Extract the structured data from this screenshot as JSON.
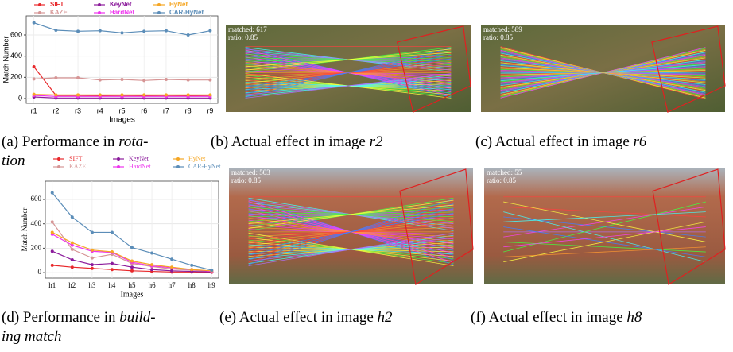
{
  "chart_data": [
    {
      "type": "line",
      "x_label": "Images",
      "y_label": "Match Number",
      "categories": [
        "r1",
        "r2",
        "r3",
        "r4",
        "r5",
        "r6",
        "r7",
        "r8",
        "r9"
      ],
      "ylim": [
        -45,
        780
      ],
      "yticks": [
        0,
        200,
        400,
        600
      ],
      "grid": true,
      "legend": "top",
      "series": [
        {
          "name": "SIFT",
          "color": "#e8282b",
          "values": [
            300,
            30,
            30,
            28,
            30,
            28,
            30,
            28,
            30
          ]
        },
        {
          "name": "KAZE",
          "color": "#d69595",
          "values": [
            185,
            195,
            195,
            175,
            180,
            170,
            180,
            175,
            175
          ]
        },
        {
          "name": "KeyNet",
          "color": "#8b1a9b",
          "values": [
            15,
            5,
            5,
            5,
            5,
            5,
            5,
            5,
            5
          ]
        },
        {
          "name": "HardNet",
          "color": "#ee33ee",
          "values": [
            30,
            20,
            20,
            20,
            20,
            20,
            20,
            20,
            20
          ]
        },
        {
          "name": "HyNet",
          "color": "#f5a623",
          "values": [
            40,
            35,
            35,
            35,
            35,
            35,
            35,
            35,
            35
          ]
        },
        {
          "name": "CAR-HyNet",
          "color": "#5b8db8",
          "values": [
            715,
            645,
            635,
            640,
            620,
            635,
            640,
            600,
            640
          ]
        }
      ]
    },
    {
      "type": "line",
      "x_label": "Images",
      "y_label": "Match Number",
      "categories": [
        "h1",
        "h2",
        "h3",
        "h4",
        "h5",
        "h6",
        "h7",
        "h8",
        "h9"
      ],
      "ylim": [
        -45,
        750
      ],
      "yticks": [
        0,
        200,
        400,
        600
      ],
      "grid": true,
      "legend": "top",
      "series": [
        {
          "name": "SIFT",
          "color": "#e8282b",
          "values": [
            60,
            45,
            35,
            25,
            15,
            10,
            5,
            5,
            3
          ]
        },
        {
          "name": "KAZE",
          "color": "#d69595",
          "values": [
            415,
            190,
            120,
            150,
            75,
            50,
            30,
            20,
            10
          ]
        },
        {
          "name": "KeyNet",
          "color": "#8b1a9b",
          "values": [
            175,
            105,
            65,
            75,
            45,
            25,
            15,
            10,
            5
          ]
        },
        {
          "name": "HardNet",
          "color": "#ee33ee",
          "values": [
            315,
            225,
            175,
            165,
            85,
            55,
            40,
            25,
            10
          ]
        },
        {
          "name": "HyNet",
          "color": "#f5a623",
          "values": [
            330,
            245,
            185,
            170,
            95,
            65,
            45,
            25,
            15
          ]
        },
        {
          "name": "CAR-HyNet",
          "color": "#5b8db8",
          "values": [
            655,
            455,
            330,
            330,
            205,
            160,
            110,
            60,
            20
          ]
        }
      ]
    }
  ],
  "images": [
    {
      "matched": "matched: 617",
      "ratio": "ratio: 0.85"
    },
    {
      "matched": "matched: 589",
      "ratio": "ratio: 0.85"
    },
    {
      "matched": "matched: 503",
      "ratio": "ratio: 0.85"
    },
    {
      "matched": "matched: 55",
      "ratio": "ratio: 0.85"
    }
  ],
  "captions": [
    {
      "prefix": "(a) Performance in",
      "emph": "rota-",
      "cont": "tion"
    },
    {
      "prefix": "(b) Actual effect in image",
      "emph": "r2"
    },
    {
      "prefix": "(c) Actual effect in image",
      "emph": "r6"
    },
    {
      "prefix": "(d) Performance in",
      "emph": "build-",
      "cont": "ing match"
    },
    {
      "prefix": "(e) Actual effect in image",
      "emph": "h2"
    },
    {
      "prefix": "(f) Actual effect in image",
      "emph": "h8"
    }
  ]
}
